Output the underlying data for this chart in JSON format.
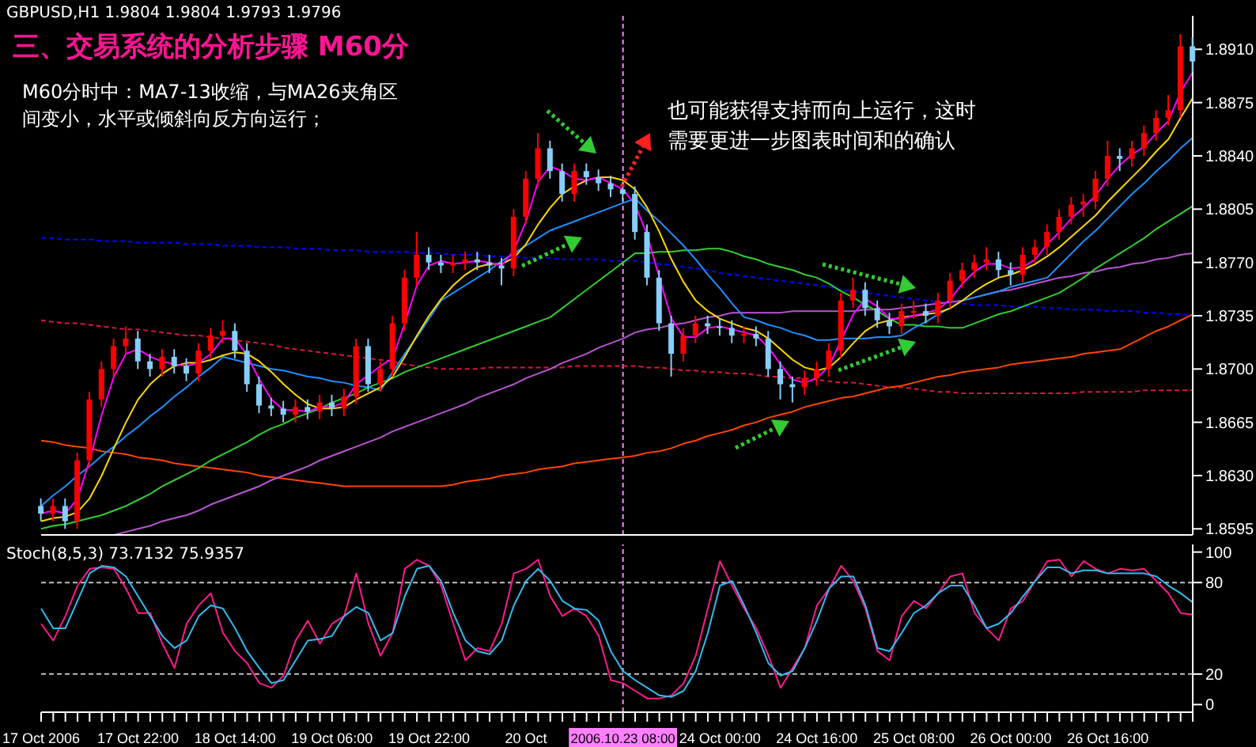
{
  "chart_data": [
    {
      "type": "candlestick",
      "title": "三、交易系统的分析步骤 M60分",
      "annotations": [
        "GBPUSD,H1 1.9804 1.9804 1.9793 1.9796",
        "M60分时中：MA7-13收缩，与MA26夹角区间变小，水平或倾斜向反方向运行；",
        "也可能获得支持而向上运行，这时需要更进一步图表时间和的确认"
      ],
      "categories": [
        "17 Oct 2006",
        null,
        null,
        null,
        null,
        null,
        null,
        null,
        "17 Oct 22:00",
        null,
        null,
        null,
        null,
        null,
        null,
        null,
        "18 Oct 14:00",
        null,
        null,
        null,
        null,
        null,
        null,
        null,
        "19 Oct 06:00",
        null,
        null,
        null,
        null,
        null,
        null,
        null,
        "19 Oct 22:00",
        null,
        null,
        null,
        null,
        null,
        null,
        null,
        "20 Oct",
        null,
        null,
        null,
        null,
        null,
        null,
        null,
        "2006.10.23 08:00",
        null,
        null,
        null,
        null,
        null,
        null,
        null,
        "24 Oct 00:00",
        null,
        null,
        null,
        null,
        null,
        null,
        null,
        "24 Oct 16:00",
        null,
        null,
        null,
        null,
        null,
        null,
        null,
        "25 Oct 08:00",
        null,
        null,
        null,
        null,
        null,
        null,
        null,
        "26 Oct 00:00",
        null,
        null,
        null,
        null,
        null,
        null,
        null,
        "26 Oct 16:00",
        null,
        null,
        null,
        null,
        null,
        null,
        null
      ],
      "ohlc": [
        [
          1.861,
          1.8615,
          1.86,
          1.8605
        ],
        [
          1.8605,
          1.8615,
          1.86,
          1.861
        ],
        [
          1.861,
          1.8615,
          1.8595,
          1.86
        ],
        [
          1.86,
          1.8645,
          1.8595,
          1.864
        ],
        [
          1.864,
          1.8685,
          1.8635,
          1.868
        ],
        [
          1.868,
          1.8705,
          1.8675,
          1.87
        ],
        [
          1.87,
          1.872,
          1.8695,
          1.8715
        ],
        [
          1.8715,
          1.8728,
          1.871,
          1.872
        ],
        [
          1.872,
          1.8725,
          1.87,
          1.8705
        ],
        [
          1.8705,
          1.871,
          1.8695,
          1.87
        ],
        [
          1.87,
          1.8713,
          1.8695,
          1.8708
        ],
        [
          1.8708,
          1.8713,
          1.8697,
          1.8702
        ],
        [
          1.8702,
          1.8707,
          1.8692,
          1.8697
        ],
        [
          1.8697,
          1.8717,
          1.8692,
          1.8712
        ],
        [
          1.8712,
          1.8727,
          1.8707,
          1.8722
        ],
        [
          1.8722,
          1.8732,
          1.8717,
          1.8725
        ],
        [
          1.8725,
          1.873,
          1.8707,
          1.8712
        ],
        [
          1.8712,
          1.8717,
          1.8685,
          1.869
        ],
        [
          1.869,
          1.8695,
          1.8671,
          1.8676
        ],
        [
          1.8676,
          1.8681,
          1.8669,
          1.8674
        ],
        [
          1.8674,
          1.8679,
          1.8665,
          1.867
        ],
        [
          1.867,
          1.868,
          1.8665,
          1.8675
        ],
        [
          1.8675,
          1.868,
          1.8667,
          1.8672
        ],
        [
          1.8672,
          1.8683,
          1.8667,
          1.8678
        ],
        [
          1.8678,
          1.8683,
          1.8669,
          1.8674
        ],
        [
          1.8674,
          1.8687,
          1.8669,
          1.8682
        ],
        [
          1.8682,
          1.872,
          1.8677,
          1.8715
        ],
        [
          1.8715,
          1.872,
          1.8685,
          1.869
        ],
        [
          1.869,
          1.8705,
          1.8685,
          1.87
        ],
        [
          1.87,
          1.8735,
          1.8695,
          1.873
        ],
        [
          1.873,
          1.8765,
          1.8725,
          1.876
        ],
        [
          1.876,
          1.879,
          1.8755,
          1.8775
        ],
        [
          1.8775,
          1.878,
          1.8765,
          1.877
        ],
        [
          1.877,
          1.8775,
          1.8763,
          1.8768
        ],
        [
          1.8768,
          1.8775,
          1.8763,
          1.877
        ],
        [
          1.877,
          1.8777,
          1.8765,
          1.8772
        ],
        [
          1.8772,
          1.8777,
          1.8765,
          1.877
        ],
        [
          1.877,
          1.8775,
          1.8763,
          1.8768
        ],
        [
          1.8768,
          1.8773,
          1.8755,
          1.8766
        ],
        [
          1.8766,
          1.8805,
          1.8761,
          1.88
        ],
        [
          1.88,
          1.883,
          1.8795,
          1.8825
        ],
        [
          1.8825,
          1.8855,
          1.882,
          1.8845
        ],
        [
          1.8845,
          1.885,
          1.8825,
          1.883
        ],
        [
          1.883,
          1.8835,
          1.881,
          1.8815
        ],
        [
          1.8815,
          1.8835,
          1.881,
          1.883
        ],
        [
          1.883,
          1.8835,
          1.8821,
          1.8826
        ],
        [
          1.8826,
          1.8831,
          1.8817,
          1.8822
        ],
        [
          1.8822,
          1.8827,
          1.8813,
          1.8818
        ],
        [
          1.8818,
          1.8823,
          1.881,
          1.8815
        ],
        [
          1.8815,
          1.882,
          1.8785,
          1.879
        ],
        [
          1.879,
          1.8795,
          1.8755,
          1.876
        ],
        [
          1.876,
          1.8765,
          1.8725,
          1.873
        ],
        [
          1.873,
          1.8735,
          1.8695,
          1.871
        ],
        [
          1.871,
          1.8727,
          1.8705,
          1.8722
        ],
        [
          1.8722,
          1.8735,
          1.8717,
          1.873
        ],
        [
          1.873,
          1.8735,
          1.8723,
          1.8728
        ],
        [
          1.8728,
          1.8733,
          1.8722,
          1.8727
        ],
        [
          1.8727,
          1.8732,
          1.8717,
          1.8722
        ],
        [
          1.8722,
          1.8728,
          1.8717,
          1.8723
        ],
        [
          1.8723,
          1.8728,
          1.8715,
          1.872
        ],
        [
          1.872,
          1.8725,
          1.8695,
          1.87
        ],
        [
          1.87,
          1.8705,
          1.868,
          1.869
        ],
        [
          1.869,
          1.8695,
          1.8678,
          1.8688
        ],
        [
          1.8688,
          1.8699,
          1.8683,
          1.8694
        ],
        [
          1.8694,
          1.8705,
          1.8689,
          1.87
        ],
        [
          1.87,
          1.8717,
          1.8695,
          1.8712
        ],
        [
          1.8712,
          1.875,
          1.8707,
          1.8745
        ],
        [
          1.8745,
          1.876,
          1.874,
          1.8752
        ],
        [
          1.8752,
          1.8757,
          1.8735,
          1.874
        ],
        [
          1.874,
          1.8745,
          1.8727,
          1.8732
        ],
        [
          1.8732,
          1.8737,
          1.8723,
          1.8728
        ],
        [
          1.8728,
          1.8743,
          1.8723,
          1.8738
        ],
        [
          1.8738,
          1.8745,
          1.8733,
          1.8738
        ],
        [
          1.8738,
          1.8743,
          1.873,
          1.8735
        ],
        [
          1.8735,
          1.875,
          1.873,
          1.8745
        ],
        [
          1.8745,
          1.8763,
          1.874,
          1.8758
        ],
        [
          1.8758,
          1.877,
          1.8753,
          1.8765
        ],
        [
          1.8765,
          1.8775,
          1.876,
          1.877
        ],
        [
          1.877,
          1.878,
          1.8765,
          1.8772
        ],
        [
          1.8772,
          1.8777,
          1.876,
          1.8765
        ],
        [
          1.8765,
          1.877,
          1.8755,
          1.8762
        ],
        [
          1.8762,
          1.878,
          1.8757,
          1.8775
        ],
        [
          1.8775,
          1.8785,
          1.877,
          1.878
        ],
        [
          1.878,
          1.8795,
          1.8775,
          1.879
        ],
        [
          1.879,
          1.8805,
          1.8785,
          1.88
        ],
        [
          1.88,
          1.8813,
          1.8795,
          1.8808
        ],
        [
          1.8808,
          1.8815,
          1.88,
          1.881
        ],
        [
          1.881,
          1.883,
          1.8805,
          1.8825
        ],
        [
          1.8825,
          1.885,
          1.882,
          1.884
        ],
        [
          1.884,
          1.8845,
          1.883,
          1.8838
        ],
        [
          1.8838,
          1.885,
          1.8833,
          1.8845
        ],
        [
          1.8845,
          1.886,
          1.884,
          1.8855
        ],
        [
          1.8855,
          1.887,
          1.885,
          1.8865
        ],
        [
          1.8865,
          1.888,
          1.886,
          1.887
        ],
        [
          1.887,
          1.892,
          1.8865,
          1.8912
        ],
        [
          1.8912,
          1.8918,
          1.8895,
          1.8902
        ]
      ],
      "colors": [
        "#87cefa",
        "#ff0000",
        "#87cefa",
        "#ff0000",
        "#ff0000",
        "#ff0000",
        "#ff0000",
        "#ff0000",
        "#87cefa",
        "#87cefa",
        "#ff0000",
        "#87cefa",
        "#87cefa",
        "#ff0000",
        "#ff0000",
        "#ff0000",
        "#87cefa",
        "#87cefa",
        "#87cefa",
        "#87cefa",
        "#87cefa",
        "#ff0000",
        "#87cefa",
        "#ff0000",
        "#87cefa",
        "#ff0000",
        "#ff0000",
        "#87cefa",
        "#ff0000",
        "#ff0000",
        "#ff0000",
        "#ff0000",
        "#87cefa",
        "#87cefa",
        "#ff0000",
        "#ff0000",
        "#87cefa",
        "#87cefa",
        "#87cefa",
        "#ff0000",
        "#ff0000",
        "#ff0000",
        "#87cefa",
        "#87cefa",
        "#ff0000",
        "#87cefa",
        "#87cefa",
        "#87cefa",
        "#87cefa",
        "#87cefa",
        "#87cefa",
        "#87cefa",
        "#87cefa",
        "#ff0000",
        "#ff0000",
        "#87cefa",
        "#87cefa",
        "#87cefa",
        "#ff0000",
        "#87cefa",
        "#87cefa",
        "#87cefa",
        "#87cefa",
        "#ff0000",
        "#ff0000",
        "#ff0000",
        "#ff0000",
        "#ff0000",
        "#87cefa",
        "#87cefa",
        "#87cefa",
        "#ff0000",
        "#ff0000",
        "#87cefa",
        "#ff0000",
        "#ff0000",
        "#ff0000",
        "#ff0000",
        "#ff0000",
        "#87cefa",
        "#87cefa",
        "#ff0000",
        "#ff0000",
        "#ff0000",
        "#ff0000",
        "#ff0000",
        "#ff0000",
        "#ff0000",
        "#ff0000",
        "#87cefa",
        "#ff0000",
        "#ff0000",
        "#ff0000",
        "#ff0000",
        "#ff0000",
        "#87cefa"
      ],
      "series": [
        {
          "type": "line",
          "color": "#0000ff",
          "line_style": "dashed",
          "values": [
            1.8786,
            1.8786,
            1.8785,
            1.8785,
            1.8785,
            1.8784,
            1.8784,
            1.8784,
            1.8783,
            1.8783,
            1.8783,
            1.8783,
            1.8782,
            1.8782,
            1.8782,
            1.8781,
            1.8781,
            1.8781,
            1.878,
            1.878,
            1.878,
            1.8779,
            1.8779,
            1.8779,
            1.8778,
            1.8778,
            1.8778,
            1.8777,
            1.8777,
            1.8777,
            1.8777,
            1.8776,
            1.8776,
            1.8776,
            1.8775,
            1.8775,
            1.8775,
            1.8774,
            1.8774,
            1.8774,
            1.8773,
            1.8773,
            1.8773,
            1.8772,
            1.8772,
            1.8772,
            1.8772,
            1.8771,
            1.8771,
            1.8771,
            1.877,
            1.8769,
            1.8768,
            1.8767,
            1.8766,
            1.8765,
            1.8763,
            1.8762,
            1.8761,
            1.876,
            1.8759,
            1.8758,
            1.8757,
            1.8756,
            1.8755,
            1.8754,
            1.8752,
            1.8751,
            1.875,
            1.8749,
            1.8748,
            1.8747,
            1.8746,
            1.8745,
            1.8744,
            1.8743,
            1.8743,
            1.8742,
            1.8742,
            1.8742,
            1.8741,
            1.8741,
            1.8741,
            1.874,
            1.874,
            1.8739,
            1.8739,
            1.8739,
            1.8738,
            1.8738,
            1.8738,
            1.8737,
            1.8737,
            1.8736,
            1.8736,
            1.8735
          ]
        },
        {
          "type": "line",
          "color": "#dc143c",
          "line_style": "dashed",
          "values": [
            1.8732,
            1.8731,
            1.873,
            1.873,
            1.8729,
            1.8728,
            1.8727,
            1.8726,
            1.8726,
            1.8725,
            1.8724,
            1.8723,
            1.8722,
            1.8722,
            1.8721,
            1.872,
            1.8719,
            1.8718,
            1.8717,
            1.8716,
            1.8714,
            1.8713,
            1.8712,
            1.8711,
            1.871,
            1.8709,
            1.8708,
            1.8707,
            1.8706,
            1.8705,
            1.8703,
            1.8702,
            1.8701,
            1.87,
            1.87,
            1.87,
            1.87,
            1.8701,
            1.8701,
            1.8701,
            1.8701,
            1.8701,
            1.8701,
            1.8701,
            1.8702,
            1.8702,
            1.8702,
            1.8702,
            1.8702,
            1.8702,
            1.8701,
            1.8701,
            1.87,
            1.8699,
            1.8699,
            1.8698,
            1.8698,
            1.8697,
            1.8697,
            1.8696,
            1.8695,
            1.8695,
            1.8694,
            1.8694,
            1.8693,
            1.8692,
            1.8691,
            1.8691,
            1.869,
            1.8689,
            1.8688,
            1.8688,
            1.8687,
            1.8686,
            1.8685,
            1.8685,
            1.8684,
            1.8684,
            1.8684,
            1.8684,
            1.8684,
            1.8684,
            1.8684,
            1.8684,
            1.8684,
            1.8684,
            1.8685,
            1.8685,
            1.8685,
            1.8685,
            1.8685,
            1.8686,
            1.8686,
            1.8686,
            1.8686,
            1.8686
          ]
        },
        {
          "type": "line",
          "color": "#ff4500",
          "values": [
            1.8653,
            1.8652,
            1.865,
            1.8649,
            1.8648,
            1.8646,
            1.8645,
            1.8644,
            1.8642,
            1.8641,
            1.864,
            1.8638,
            1.8637,
            1.8636,
            1.8635,
            1.8634,
            1.8633,
            1.8632,
            1.863,
            1.8629,
            1.8628,
            1.8627,
            1.8626,
            1.8625,
            1.8624,
            1.8623,
            1.8623,
            1.8623,
            1.8623,
            1.8623,
            1.8623,
            1.8623,
            1.8623,
            1.8623,
            1.8624,
            1.8626,
            1.8627,
            1.8628,
            1.863,
            1.8631,
            1.8632,
            1.8634,
            1.8635,
            1.8636,
            1.8638,
            1.8639,
            1.864,
            1.8641,
            1.8642,
            1.8643,
            1.8645,
            1.8646,
            1.8648,
            1.8651,
            1.8653,
            1.8656,
            1.8658,
            1.866,
            1.8663,
            1.8665,
            1.8668,
            1.867,
            1.8672,
            1.8675,
            1.8677,
            1.8679,
            1.8681,
            1.8682,
            1.8684,
            1.8686,
            1.8688,
            1.8689,
            1.8691,
            1.8693,
            1.8695,
            1.8696,
            1.8698,
            1.8699,
            1.87,
            1.8701,
            1.8703,
            1.8704,
            1.8705,
            1.8706,
            1.8707,
            1.8708,
            1.871,
            1.8711,
            1.8712,
            1.8713,
            1.8717,
            1.8721,
            1.8725,
            1.8728,
            1.8732,
            1.8736
          ]
        },
        {
          "type": "line",
          "color": "#ba55d3",
          "values": [
            null,
            null,
            null,
            null,
            null,
            null,
            1.8591,
            1.8593,
            1.8595,
            1.8597,
            1.86,
            1.8602,
            1.8604,
            1.8607,
            1.8611,
            1.8614,
            1.8617,
            1.862,
            1.8623,
            1.8627,
            1.863,
            1.8633,
            1.8636,
            1.864,
            1.8643,
            1.8646,
            1.8649,
            1.8652,
            1.8655,
            1.8659,
            1.8662,
            1.8665,
            1.8668,
            1.8671,
            1.8674,
            1.8677,
            1.8681,
            1.8684,
            1.8687,
            1.869,
            1.8694,
            1.8697,
            1.87,
            1.8704,
            1.8707,
            1.871,
            1.8714,
            1.8717,
            1.872,
            1.8724,
            1.8726,
            1.8727,
            1.8729,
            1.873,
            1.8732,
            1.8734,
            1.8735,
            1.8737,
            1.8737,
            1.8737,
            1.8737,
            1.8737,
            1.8738,
            1.8738,
            1.8738,
            1.8738,
            1.8738,
            1.8738,
            1.8739,
            1.8739,
            1.8739,
            1.874,
            1.8741,
            1.8742,
            1.8743,
            1.8744,
            1.8745,
            1.8747,
            1.8749,
            1.8751,
            1.8752,
            1.8754,
            1.8756,
            1.8758,
            1.876,
            1.8761,
            1.8763,
            1.8764,
            1.8766,
            1.8767,
            1.8769,
            1.877,
            1.8772,
            1.8773,
            1.8775,
            1.8776
          ]
        },
        {
          "type": "line",
          "color": "#32cd32",
          "values": [
            1.8595,
            1.8597,
            1.8598,
            1.86,
            1.8602,
            1.8604,
            1.8607,
            1.861,
            1.8614,
            1.8618,
            1.8623,
            1.8627,
            1.8631,
            1.8635,
            1.864,
            1.8644,
            1.8648,
            1.8652,
            1.8657,
            1.8661,
            1.8664,
            1.8668,
            1.8671,
            1.8674,
            1.8678,
            1.8681,
            1.8684,
            1.8688,
            1.8691,
            1.8694,
            1.8698,
            1.8701,
            1.8704,
            1.8707,
            1.871,
            1.8713,
            1.8716,
            1.8719,
            1.8722,
            1.8725,
            1.8728,
            1.8731,
            1.8734,
            1.874,
            1.8746,
            1.8752,
            1.8758,
            1.8764,
            1.877,
            1.8776,
            1.8776,
            1.8777,
            1.8777,
            1.8778,
            1.8778,
            1.8779,
            1.8779,
            1.8777,
            1.8774,
            1.8772,
            1.8769,
            1.8767,
            1.8765,
            1.8762,
            1.876,
            1.8756,
            1.8751,
            1.8747,
            1.8742,
            1.8738,
            1.8733,
            1.8729,
            1.8729,
            1.8728,
            1.8728,
            1.8727,
            1.8727,
            1.873,
            1.8733,
            1.8736,
            1.8738,
            1.8741,
            1.8744,
            1.8747,
            1.875,
            1.8755,
            1.876,
            1.8766,
            1.8771,
            1.8776,
            1.8781,
            1.8786,
            1.8792,
            1.8797,
            1.8802,
            1.8807
          ]
        },
        {
          "type": "line",
          "color": "#1e90ff",
          "values": [
            1.861,
            1.8617,
            1.8623,
            1.863,
            1.8636,
            1.8643,
            1.8649,
            1.8656,
            1.8662,
            1.8669,
            1.8675,
            1.8682,
            1.8688,
            1.8695,
            1.8701,
            1.8708,
            1.8706,
            1.8704,
            1.8702,
            1.87,
            1.8699,
            1.8697,
            1.8695,
            1.8694,
            1.8692,
            1.8691,
            1.8689,
            1.8688,
            1.8686,
            1.8698,
            1.871,
            1.8721,
            1.8733,
            1.8745,
            1.875,
            1.8755,
            1.876,
            1.8765,
            1.8771,
            1.8776,
            1.8781,
            1.8786,
            1.8791,
            1.8794,
            1.8797,
            1.88,
            1.8803,
            1.8806,
            1.8809,
            1.8812,
            1.8804,
            1.8797,
            1.8789,
            1.8781,
            1.8772,
            1.8762,
            1.8753,
            1.8743,
            1.8734,
            1.8732,
            1.8729,
            1.8727,
            1.8724,
            1.8722,
            1.8719,
            1.8719,
            1.872,
            1.872,
            1.872,
            1.8721,
            1.8721,
            1.8722,
            1.8727,
            1.8731,
            1.8736,
            1.874,
            1.8745,
            1.8747,
            1.8749,
            1.8751,
            1.8754,
            1.8756,
            1.8758,
            1.876,
            1.8768,
            1.8776,
            1.8784,
            1.8791,
            1.8799,
            1.8807,
            1.8815,
            1.8822,
            1.883,
            1.8837,
            1.8845,
            1.8852
          ]
        },
        {
          "type": "line",
          "color": "#ffd700",
          "values": [
            1.86,
            1.8602,
            1.8603,
            1.8606,
            1.8615,
            1.863,
            1.8648,
            1.8665,
            1.868,
            1.869,
            1.8697,
            1.8702,
            1.8704,
            1.8704,
            1.8706,
            1.8709,
            1.8711,
            1.871,
            1.8705,
            1.8698,
            1.869,
            1.8683,
            1.8677,
            1.8674,
            1.8674,
            1.8675,
            1.868,
            1.8684,
            1.8688,
            1.8695,
            1.8708,
            1.8722,
            1.8735,
            1.8746,
            1.8755,
            1.8762,
            1.8767,
            1.8769,
            1.8769,
            1.8773,
            1.8782,
            1.8795,
            1.8806,
            1.8815,
            1.882,
            1.8824,
            1.8826,
            1.8826,
            1.8824,
            1.8818,
            1.8806,
            1.879,
            1.8772,
            1.8757,
            1.8745,
            1.8738,
            1.8733,
            1.873,
            1.8727,
            1.8725,
            1.872,
            1.8713,
            1.8706,
            1.8701,
            1.8699,
            1.8701,
            1.8708,
            1.8717,
            1.8725,
            1.873,
            1.8732,
            1.8734,
            1.8735,
            1.8736,
            1.8737,
            1.874,
            1.8745,
            1.8751,
            1.8756,
            1.876,
            1.8762,
            1.8765,
            1.8769,
            1.8774,
            1.878,
            1.8787,
            1.8794,
            1.8801,
            1.881,
            1.8818,
            1.8826,
            1.8834,
            1.8843,
            1.8851,
            1.8865,
            1.8878
          ]
        },
        {
          "type": "line",
          "color": "#ff00ff",
          "values": [
            1.8605,
            1.8607,
            1.8605,
            1.8615,
            1.864,
            1.867,
            1.8695,
            1.871,
            1.8713,
            1.8708,
            1.8705,
            1.8703,
            1.8702,
            1.8704,
            1.871,
            1.872,
            1.872,
            1.8709,
            1.8693,
            1.868,
            1.8673,
            1.8673,
            1.8672,
            1.8675,
            1.8675,
            1.8678,
            1.869,
            1.8696,
            1.8702,
            1.8707,
            1.873,
            1.8755,
            1.8768,
            1.8771,
            1.8769,
            1.877,
            1.8771,
            1.877,
            1.8768,
            1.8778,
            1.8797,
            1.8823,
            1.8833,
            1.883,
            1.8825,
            1.8824,
            1.8826,
            1.8822,
            1.8818,
            1.8808,
            1.8788,
            1.876,
            1.8733,
            1.8721,
            1.8721,
            1.8727,
            1.8728,
            1.8726,
            1.8724,
            1.8722,
            1.8714,
            1.8703,
            1.8693,
            1.8691,
            1.8694,
            1.8702,
            1.8719,
            1.8736,
            1.8746,
            1.8741,
            1.8733,
            1.8733,
            1.8735,
            1.8737,
            1.8739,
            1.8746,
            1.8756,
            1.8764,
            1.8769,
            1.8769,
            1.8766,
            1.8767,
            1.8772,
            1.8782,
            1.879,
            1.8799,
            1.8806,
            1.8814,
            1.8825,
            1.8834,
            1.8841,
            1.8846,
            1.8855,
            1.8863,
            1.8882,
            1.8895
          ]
        }
      ],
      "ylim": [
        1.8591,
        1.8932
      ],
      "yticks": [
        {
          "value": 1.8595,
          "label": "1.8595"
        },
        {
          "value": 1.863,
          "label": "1.8630"
        },
        {
          "value": 1.8665,
          "label": "1.8665"
        },
        {
          "value": 1.87,
          "label": "1.8700"
        },
        {
          "value": 1.8735,
          "label": "1.8735"
        },
        {
          "value": 1.877,
          "label": "1.8770"
        },
        {
          "value": 1.8805,
          "label": "1.8805"
        },
        {
          "value": 1.884,
          "label": "1.8840"
        },
        {
          "value": 1.8875,
          "label": "1.8875"
        },
        {
          "value": 1.891,
          "label": "1.8910"
        }
      ],
      "tick_labels": "y",
      "ref_lines": [
        {
          "axis": "x",
          "value": "2006.10.23 08:00",
          "color": "#ff80ff",
          "line_style": "dashed"
        }
      ]
    },
    {
      "type": "line",
      "title": "Stoch(8,5,3) 73.7132 75.9357",
      "categories": [
        "17 Oct 2006",
        null,
        null,
        null,
        null,
        null,
        null,
        null,
        "17 Oct 22:00",
        null,
        null,
        null,
        null,
        null,
        null,
        null,
        "18 Oct 14:00",
        null,
        null,
        null,
        null,
        null,
        null,
        null,
        "19 Oct 06:00",
        null,
        null,
        null,
        null,
        null,
        null,
        null,
        "19 Oct 22:00",
        null,
        null,
        null,
        null,
        null,
        null,
        null,
        "20 Oct",
        null,
        null,
        null,
        null,
        null,
        null,
        null,
        "2006.10.23 08:00",
        null,
        null,
        null,
        null,
        null,
        null,
        null,
        "24 Oct 00:00",
        null,
        null,
        null,
        null,
        null,
        null,
        null,
        "24 Oct 16:00",
        null,
        null,
        null,
        null,
        null,
        null,
        null,
        "25 Oct 08:00",
        null,
        null,
        null,
        null,
        null,
        null,
        null,
        "26 Oct 00:00",
        null,
        null,
        null,
        null,
        null,
        null,
        null,
        "26 Oct 16:00",
        null,
        null,
        null,
        null,
        null,
        null,
        null
      ],
      "series": [
        {
          "color": "#ff1a8c",
          "values": [
            53,
            42,
            58,
            78,
            89,
            90,
            89,
            76,
            60,
            60,
            40,
            24,
            53,
            65,
            73,
            47,
            35,
            27,
            14,
            11,
            19,
            42,
            55,
            40,
            53,
            58,
            86,
            53,
            32,
            47,
            89,
            95,
            91,
            78,
            53,
            29,
            37,
            35,
            53,
            86,
            89,
            95,
            71,
            58,
            63,
            58,
            45,
            16,
            14,
            9,
            4,
            4,
            6,
            14,
            32,
            63,
            94,
            78,
            63,
            50,
            32,
            11,
            24,
            37,
            65,
            76,
            91,
            81,
            63,
            35,
            29,
            58,
            68,
            63,
            73,
            84,
            86,
            60,
            50,
            42,
            63,
            68,
            81,
            94,
            95,
            84,
            94,
            89,
            86,
            89,
            88,
            89,
            81,
            73,
            60,
            59
          ]
        },
        {
          "color": "#33bbee",
          "values": [
            63,
            50,
            50,
            68,
            86,
            91,
            90,
            84,
            71,
            58,
            45,
            37,
            42,
            58,
            65,
            63,
            50,
            35,
            24,
            14,
            16,
            29,
            42,
            43,
            45,
            58,
            64,
            60,
            42,
            47,
            71,
            89,
            91,
            81,
            60,
            42,
            35,
            33,
            42,
            65,
            81,
            89,
            81,
            68,
            63,
            62,
            55,
            35,
            22,
            16,
            11,
            6,
            5,
            9,
            22,
            47,
            78,
            81,
            65,
            47,
            27,
            19,
            22,
            37,
            55,
            76,
            84,
            84,
            65,
            37,
            35,
            47,
            60,
            65,
            73,
            78,
            78,
            65,
            50,
            53,
            60,
            71,
            81,
            90,
            90,
            86,
            88,
            88,
            86,
            86,
            86,
            86,
            84,
            78,
            73,
            67
          ]
        }
      ],
      "ylim": [
        -5,
        105
      ],
      "yticks": [
        0,
        20,
        80,
        100
      ],
      "ref_lines": [
        {
          "axis": "y",
          "value": 80,
          "color": "#c0c0c0",
          "line_style": "dashed"
        },
        {
          "axis": "y",
          "value": 20,
          "color": "#c0c0c0",
          "line_style": "dashed"
        },
        {
          "axis": "x",
          "value": "2006.10.23 08:00",
          "color": "#ff80ff",
          "line_style": "dashed"
        }
      ]
    }
  ]
}
